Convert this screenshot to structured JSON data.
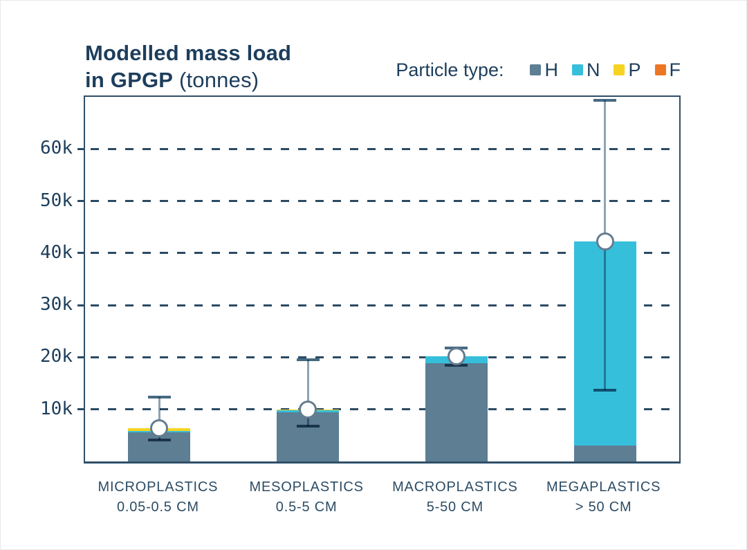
{
  "title": {
    "line1": "Modelled mass load",
    "line2_bold": "in GPGP",
    "line2_regular": " (tonnes)"
  },
  "colors": {
    "title_text": "#1d3e5c",
    "axis": "#2f4f69",
    "gridline": "#2b4a63",
    "H": "#5d7e93",
    "N": "#36bfda",
    "P": "#f6d320",
    "F": "#ed7524",
    "error_whisker": "#8ca3b2",
    "error_cap": "#466a83",
    "marker_stroke": "#647c90",
    "marker_fill": "#ffffff"
  },
  "chart_data": {
    "type": "bar",
    "stacked": true,
    "title": "Modelled mass load in GPGP (tonnes)",
    "unit": "tonnes",
    "legend_title": "Particle type:",
    "legend_position": "top-right",
    "grid": "dashed-horizontal",
    "ylim": [
      0,
      70000
    ],
    "yticks": [
      {
        "value": 10000,
        "label": "10k"
      },
      {
        "value": 20000,
        "label": "20k"
      },
      {
        "value": 30000,
        "label": "30k"
      },
      {
        "value": 40000,
        "label": "40k"
      },
      {
        "value": 50000,
        "label": "50k"
      },
      {
        "value": 60000,
        "label": "60k"
      }
    ],
    "categories": [
      {
        "label": "MICROPLASTICS",
        "sublabel": "0.05-0.5 CM"
      },
      {
        "label": "MESOPLASTICS",
        "sublabel": "0.5-5 CM"
      },
      {
        "label": "MACROPLASTICS",
        "sublabel": "5-50 CM"
      },
      {
        "label": "MEGAPLASTICS",
        "sublabel": "> 50 CM"
      }
    ],
    "series": [
      {
        "name": "H",
        "color": "#5d7e93",
        "values": [
          5600,
          9400,
          18800,
          3000
        ]
      },
      {
        "name": "N",
        "color": "#36bfda",
        "values": [
          200,
          450,
          1400,
          39200
        ]
      },
      {
        "name": "P",
        "color": "#f6d320",
        "values": [
          600,
          150,
          0,
          0
        ]
      },
      {
        "name": "F",
        "color": "#ed7524",
        "values": [
          0,
          0,
          0,
          0
        ]
      }
    ],
    "totals": [
      6400,
      10000,
      20200,
      42200
    ],
    "error_bars": [
      {
        "low": 4100,
        "mid": 6400,
        "high": 12300
      },
      {
        "low": 6800,
        "mid": 10000,
        "high": 19500
      },
      {
        "low": 18400,
        "mid": 20200,
        "high": 21800
      },
      {
        "low": 13700,
        "mid": 42200,
        "high": 69300
      }
    ]
  }
}
